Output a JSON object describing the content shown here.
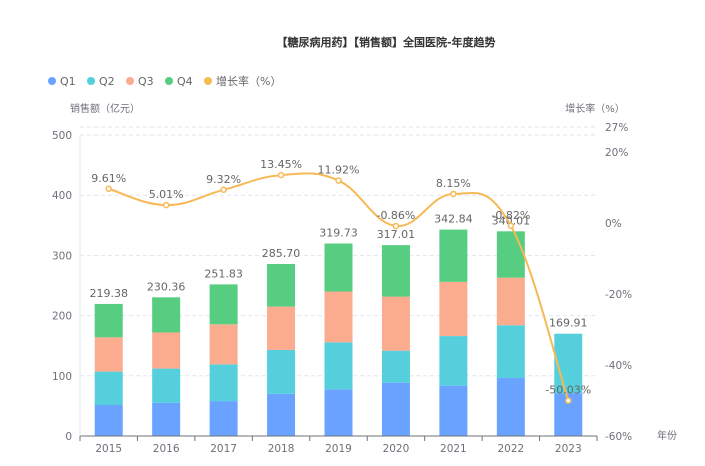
{
  "chart_data": {
    "type": "bar",
    "subtype": "stacked-bar-with-line",
    "title": "【糖尿病用药】【销售额】全国医院-年度趋势",
    "categories": [
      "2015",
      "2016",
      "2017",
      "2018",
      "2019",
      "2020",
      "2021",
      "2022",
      "2023"
    ],
    "xlabel": "年份",
    "ylabel": "销售额（亿元）",
    "y2label": "增长率（%）",
    "ylim": [
      0,
      500
    ],
    "yticks": [
      0,
      100,
      200,
      300,
      400,
      500
    ],
    "y2lim": [
      -60,
      27
    ],
    "y2ticks": [
      -60,
      -40,
      -20,
      0,
      20,
      27
    ],
    "y2tick_labels": [
      "-60%",
      "-40%",
      "-20%",
      "0%",
      "20%",
      "27%"
    ],
    "grid": true,
    "legend_position": "top-left",
    "series": [
      {
        "name": "Q1",
        "type": "bar",
        "stack": "total",
        "color": "#6aa3ff",
        "values": [
          51.5,
          55.0,
          58.0,
          70.0,
          77.5,
          88.6,
          83.6,
          96.3,
          71.0
        ]
      },
      {
        "name": "Q2",
        "type": "bar",
        "stack": "total",
        "color": "#56cfdd",
        "values": [
          55.5,
          57.0,
          61.0,
          73.0,
          78.1,
          53.1,
          82.4,
          87.7,
          98.91
        ]
      },
      {
        "name": "Q3",
        "type": "bar",
        "stack": "total",
        "color": "#fbab8e",
        "values": [
          57.0,
          60.0,
          66.5,
          72.0,
          84.4,
          89.8,
          90.0,
          79.0,
          0
        ]
      },
      {
        "name": "Q4",
        "type": "bar",
        "stack": "total",
        "color": "#56cd80",
        "values": [
          55.38,
          58.36,
          66.33,
          70.7,
          79.73,
          85.51,
          86.84,
          77.01,
          0
        ]
      },
      {
        "name": "增长率（%）",
        "type": "line",
        "axis": "right",
        "color": "#f7b955",
        "values": [
          9.61,
          5.01,
          9.32,
          13.45,
          11.92,
          -0.86,
          8.15,
          -0.82,
          -50.03
        ],
        "labels": [
          "9.61%",
          "5.01%",
          "9.32%",
          "13.45%",
          "11.92%",
          "-0.86%",
          "8.15%",
          "-0.82%",
          "-50.03%"
        ]
      }
    ],
    "totals": [
      219.38,
      230.36,
      251.83,
      285.7,
      319.73,
      317.01,
      342.84,
      340.01,
      169.91
    ],
    "total_labels": [
      "219.38",
      "230.36",
      "251.83",
      "285.70",
      "319.73",
      "317.01",
      "342.84",
      "340.01",
      "169.91"
    ],
    "legend": [
      {
        "label": "Q1",
        "color": "#6aa3ff"
      },
      {
        "label": "Q2",
        "color": "#56cfdd"
      },
      {
        "label": "Q3",
        "color": "#fbab8e"
      },
      {
        "label": "Q4",
        "color": "#56cd80"
      },
      {
        "label": "增长率（%）",
        "color": "#f7b955"
      }
    ]
  }
}
